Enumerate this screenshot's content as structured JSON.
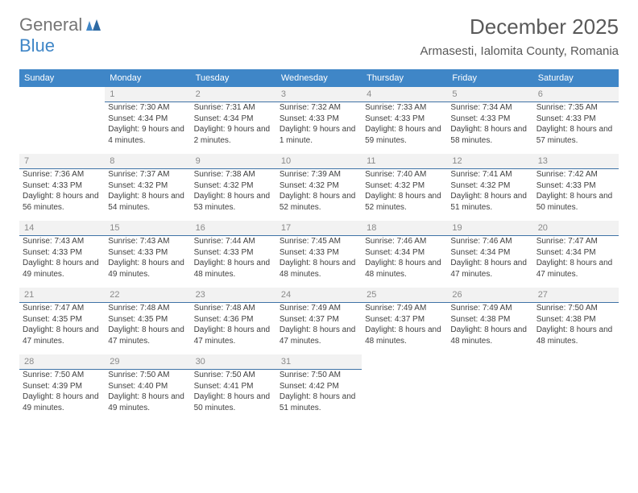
{
  "logo": {
    "text1": "General",
    "text2": "Blue"
  },
  "title": "December 2025",
  "location": "Armasesti, Ialomita County, Romania",
  "colors": {
    "accent": "#3f86c7",
    "headerText": "#595959",
    "rowBg": "#f2f2f2",
    "rowBorder": "#3f73a6"
  },
  "dayNames": [
    "Sunday",
    "Monday",
    "Tuesday",
    "Wednesday",
    "Thursday",
    "Friday",
    "Saturday"
  ],
  "weeks": [
    [
      null,
      {
        "num": "1",
        "sunrise": "Sunrise: 7:30 AM",
        "sunset": "Sunset: 4:34 PM",
        "daylight": "Daylight: 9 hours and 4 minutes."
      },
      {
        "num": "2",
        "sunrise": "Sunrise: 7:31 AM",
        "sunset": "Sunset: 4:34 PM",
        "daylight": "Daylight: 9 hours and 2 minutes."
      },
      {
        "num": "3",
        "sunrise": "Sunrise: 7:32 AM",
        "sunset": "Sunset: 4:33 PM",
        "daylight": "Daylight: 9 hours and 1 minute."
      },
      {
        "num": "4",
        "sunrise": "Sunrise: 7:33 AM",
        "sunset": "Sunset: 4:33 PM",
        "daylight": "Daylight: 8 hours and 59 minutes."
      },
      {
        "num": "5",
        "sunrise": "Sunrise: 7:34 AM",
        "sunset": "Sunset: 4:33 PM",
        "daylight": "Daylight: 8 hours and 58 minutes."
      },
      {
        "num": "6",
        "sunrise": "Sunrise: 7:35 AM",
        "sunset": "Sunset: 4:33 PM",
        "daylight": "Daylight: 8 hours and 57 minutes."
      }
    ],
    [
      {
        "num": "7",
        "sunrise": "Sunrise: 7:36 AM",
        "sunset": "Sunset: 4:33 PM",
        "daylight": "Daylight: 8 hours and 56 minutes."
      },
      {
        "num": "8",
        "sunrise": "Sunrise: 7:37 AM",
        "sunset": "Sunset: 4:32 PM",
        "daylight": "Daylight: 8 hours and 54 minutes."
      },
      {
        "num": "9",
        "sunrise": "Sunrise: 7:38 AM",
        "sunset": "Sunset: 4:32 PM",
        "daylight": "Daylight: 8 hours and 53 minutes."
      },
      {
        "num": "10",
        "sunrise": "Sunrise: 7:39 AM",
        "sunset": "Sunset: 4:32 PM",
        "daylight": "Daylight: 8 hours and 52 minutes."
      },
      {
        "num": "11",
        "sunrise": "Sunrise: 7:40 AM",
        "sunset": "Sunset: 4:32 PM",
        "daylight": "Daylight: 8 hours and 52 minutes."
      },
      {
        "num": "12",
        "sunrise": "Sunrise: 7:41 AM",
        "sunset": "Sunset: 4:32 PM",
        "daylight": "Daylight: 8 hours and 51 minutes."
      },
      {
        "num": "13",
        "sunrise": "Sunrise: 7:42 AM",
        "sunset": "Sunset: 4:33 PM",
        "daylight": "Daylight: 8 hours and 50 minutes."
      }
    ],
    [
      {
        "num": "14",
        "sunrise": "Sunrise: 7:43 AM",
        "sunset": "Sunset: 4:33 PM",
        "daylight": "Daylight: 8 hours and 49 minutes."
      },
      {
        "num": "15",
        "sunrise": "Sunrise: 7:43 AM",
        "sunset": "Sunset: 4:33 PM",
        "daylight": "Daylight: 8 hours and 49 minutes."
      },
      {
        "num": "16",
        "sunrise": "Sunrise: 7:44 AM",
        "sunset": "Sunset: 4:33 PM",
        "daylight": "Daylight: 8 hours and 48 minutes."
      },
      {
        "num": "17",
        "sunrise": "Sunrise: 7:45 AM",
        "sunset": "Sunset: 4:33 PM",
        "daylight": "Daylight: 8 hours and 48 minutes."
      },
      {
        "num": "18",
        "sunrise": "Sunrise: 7:46 AM",
        "sunset": "Sunset: 4:34 PM",
        "daylight": "Daylight: 8 hours and 48 minutes."
      },
      {
        "num": "19",
        "sunrise": "Sunrise: 7:46 AM",
        "sunset": "Sunset: 4:34 PM",
        "daylight": "Daylight: 8 hours and 47 minutes."
      },
      {
        "num": "20",
        "sunrise": "Sunrise: 7:47 AM",
        "sunset": "Sunset: 4:34 PM",
        "daylight": "Daylight: 8 hours and 47 minutes."
      }
    ],
    [
      {
        "num": "21",
        "sunrise": "Sunrise: 7:47 AM",
        "sunset": "Sunset: 4:35 PM",
        "daylight": "Daylight: 8 hours and 47 minutes."
      },
      {
        "num": "22",
        "sunrise": "Sunrise: 7:48 AM",
        "sunset": "Sunset: 4:35 PM",
        "daylight": "Daylight: 8 hours and 47 minutes."
      },
      {
        "num": "23",
        "sunrise": "Sunrise: 7:48 AM",
        "sunset": "Sunset: 4:36 PM",
        "daylight": "Daylight: 8 hours and 47 minutes."
      },
      {
        "num": "24",
        "sunrise": "Sunrise: 7:49 AM",
        "sunset": "Sunset: 4:37 PM",
        "daylight": "Daylight: 8 hours and 47 minutes."
      },
      {
        "num": "25",
        "sunrise": "Sunrise: 7:49 AM",
        "sunset": "Sunset: 4:37 PM",
        "daylight": "Daylight: 8 hours and 48 minutes."
      },
      {
        "num": "26",
        "sunrise": "Sunrise: 7:49 AM",
        "sunset": "Sunset: 4:38 PM",
        "daylight": "Daylight: 8 hours and 48 minutes."
      },
      {
        "num": "27",
        "sunrise": "Sunrise: 7:50 AM",
        "sunset": "Sunset: 4:38 PM",
        "daylight": "Daylight: 8 hours and 48 minutes."
      }
    ],
    [
      {
        "num": "28",
        "sunrise": "Sunrise: 7:50 AM",
        "sunset": "Sunset: 4:39 PM",
        "daylight": "Daylight: 8 hours and 49 minutes."
      },
      {
        "num": "29",
        "sunrise": "Sunrise: 7:50 AM",
        "sunset": "Sunset: 4:40 PM",
        "daylight": "Daylight: 8 hours and 49 minutes."
      },
      {
        "num": "30",
        "sunrise": "Sunrise: 7:50 AM",
        "sunset": "Sunset: 4:41 PM",
        "daylight": "Daylight: 8 hours and 50 minutes."
      },
      {
        "num": "31",
        "sunrise": "Sunrise: 7:50 AM",
        "sunset": "Sunset: 4:42 PM",
        "daylight": "Daylight: 8 hours and 51 minutes."
      },
      null,
      null,
      null
    ]
  ]
}
